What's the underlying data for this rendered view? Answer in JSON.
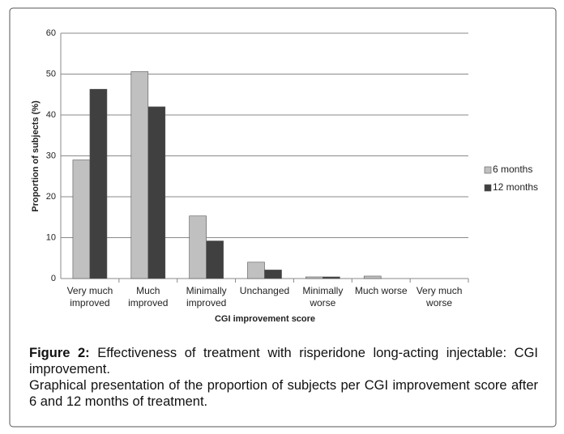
{
  "chart_data": {
    "type": "bar",
    "y_label": "Proportion of subjects (%)",
    "x_label": "CGI improvement score",
    "categories": [
      "Very much improved",
      "Much improved",
      "Minimally improved",
      "Unchanged",
      "Minimally worse",
      "Much worse",
      "Very much worse"
    ],
    "series": [
      {
        "name": "6 months",
        "color": "#c0c0c0",
        "values": [
          29,
          50.6,
          15.3,
          4,
          0.4,
          0.6,
          0
        ]
      },
      {
        "name": "12 months",
        "color": "#404040",
        "values": [
          46.3,
          42,
          9.2,
          2.1,
          0.4,
          0,
          0
        ]
      }
    ],
    "ylim": [
      0,
      60
    ],
    "yticks": [
      0,
      10,
      20,
      30,
      40,
      50,
      60
    ],
    "grid": true,
    "legend": "right"
  },
  "caption": {
    "label": "Figure 2:",
    "title": "Effectiveness of treatment with risperidone long-acting injectable: CGI improvement.",
    "text": "Graphical presentation of the proportion of subjects per CGI improvement score after 6 and 12 months of treatment."
  }
}
